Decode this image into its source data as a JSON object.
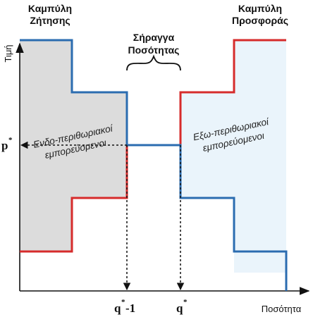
{
  "labels": {
    "demand_curve_line1": "Καμπύλη",
    "demand_curve_line2": "Ζήτησης",
    "supply_curve_line1": "Καμπύλη",
    "supply_curve_line2": "Προσφοράς",
    "gap_line1": "Σήραγγα",
    "gap_line2": "Ποσότητας",
    "y_axis": "Τιμή",
    "x_axis": "Ποσότητα",
    "price_symbol": "p",
    "price_sup": "*",
    "q_minus_symbol": "q",
    "q_minus_sup": "*",
    "q_minus_suffix": "-1",
    "q_symbol": "q",
    "q_sup": "*",
    "intra_line1": "Ενδο-περιθωριακοί",
    "intra_line2": "εμπορεύομενοι",
    "extra_line1": "Εξω-περιθωριακοί",
    "extra_line2": "εμπορεύομενοι"
  },
  "colors": {
    "demand": "#2b6cb0",
    "supply": "#d62b2b",
    "intra_fill": "#dcdcdc",
    "extra_fill": "#eaf4fb",
    "axis": "#111111"
  }
}
